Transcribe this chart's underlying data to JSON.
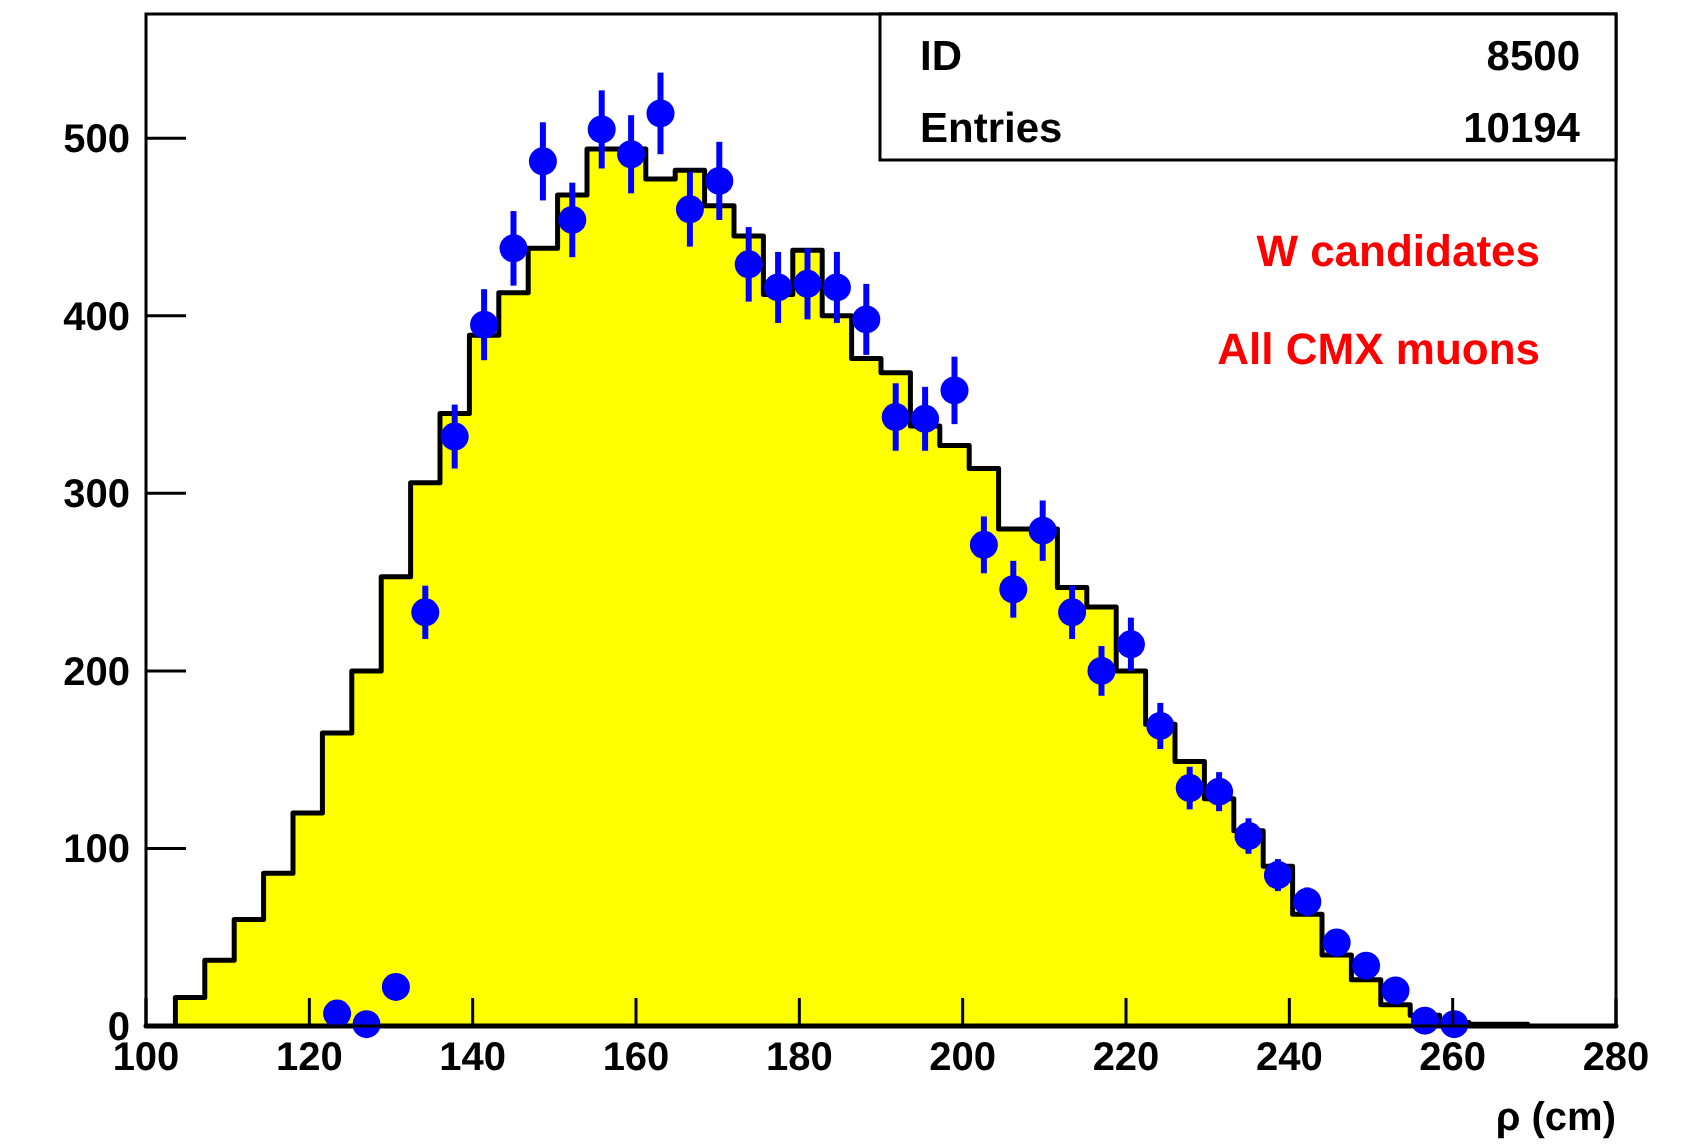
{
  "chart_data": {
    "type": "histogram",
    "xlabel": "ρ (cm)",
    "annotations": [
      "ID",
      "8500",
      "Entries",
      "10194",
      "W candidates",
      "All CMX muons"
    ],
    "bins": [
      100,
      103.6,
      107.2,
      110.8,
      114.4,
      118,
      121.6,
      125.2,
      128.8,
      132.4,
      136,
      139.6,
      143.2,
      146.8,
      150.4,
      154,
      157.6,
      161.2,
      164.8,
      168.4,
      172,
      175.6,
      179.2,
      182.8,
      186.4,
      190,
      193.6,
      197.2,
      200.8,
      204.4,
      208,
      211.6,
      215.2,
      218.8,
      222.4,
      226,
      229.6,
      233.2,
      236.8,
      240.4,
      244,
      247.6,
      251.2,
      254.8,
      258.4,
      262,
      265.6,
      269.2,
      272.8,
      276.4,
      280
    ],
    "series": [
      {
        "color": "#ffff00",
        "values": [
          0,
          16,
          37,
          60,
          86,
          120,
          165,
          200,
          253,
          306,
          345,
          389,
          413,
          438,
          468,
          494,
          494,
          477,
          482,
          462,
          445,
          412,
          437,
          400,
          376,
          368,
          338,
          327,
          314,
          280,
          280,
          247,
          236,
          200,
          170,
          149,
          128,
          110,
          90,
          63,
          40,
          26,
          12,
          6,
          2,
          1,
          1,
          0,
          0,
          0
        ]
      },
      {
        "type": "scatter",
        "color": "#0000ff",
        "x": [
          123.4,
          127,
          130.6,
          134.2,
          137.8,
          141.4,
          145,
          148.6,
          152.2,
          155.8,
          159.4,
          163,
          166.6,
          170.2,
          173.8,
          177.4,
          181,
          184.6,
          188.2,
          191.8,
          195.4,
          199,
          202.6,
          206.2,
          209.8,
          213.4,
          217,
          220.6,
          224.2,
          227.8,
          231.4,
          235,
          238.6,
          242.2,
          245.8,
          249.4,
          253,
          256.6,
          260.2
        ],
        "values": [
          7,
          1,
          22,
          233,
          332,
          395,
          438,
          487,
          454,
          505,
          491,
          514,
          460,
          476,
          429,
          416,
          418,
          416,
          398,
          343,
          342,
          358,
          271,
          246,
          279,
          233,
          200,
          215,
          169,
          134,
          132,
          107,
          85,
          70,
          47,
          34,
          20,
          3,
          1
        ],
        "errors": [
          3,
          1,
          5,
          15,
          18,
          20,
          21,
          22,
          21,
          22,
          22,
          23,
          21,
          22,
          21,
          20,
          20,
          20,
          20,
          19,
          18,
          19,
          16,
          16,
          17,
          15,
          14,
          15,
          13,
          12,
          11,
          10,
          9,
          8,
          7,
          6,
          4,
          2,
          1
        ]
      }
    ],
    "xlim": [
      100,
      280
    ],
    "xticks": [
      100,
      120,
      140,
      160,
      180,
      200,
      220,
      240,
      260,
      280
    ],
    "ylim": [
      0,
      570
    ],
    "yticks": [
      0,
      100,
      200,
      300,
      400,
      500
    ],
    "grid": false,
    "marker": "circle"
  }
}
